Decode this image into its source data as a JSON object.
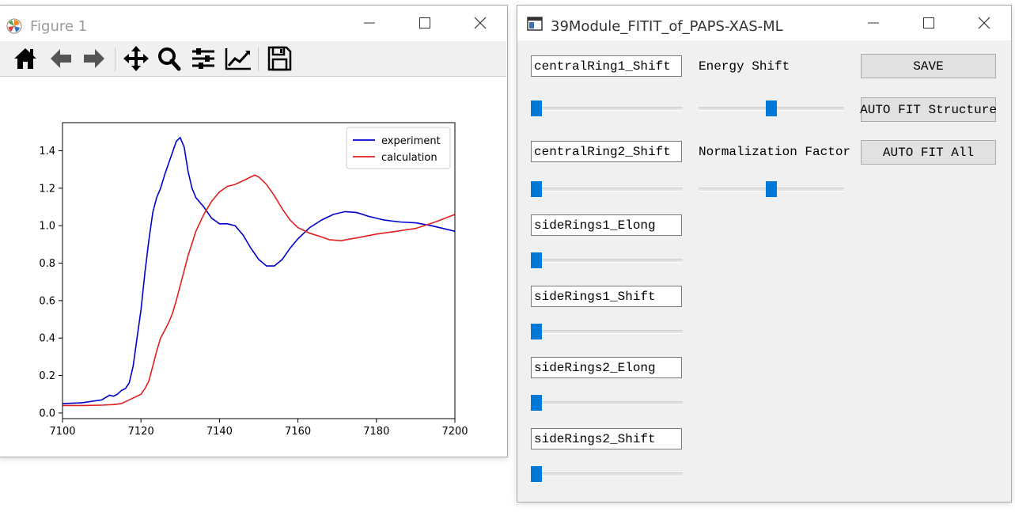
{
  "figure_window": {
    "title": "Figure 1",
    "toolbar": [
      {
        "name": "home-icon"
      },
      {
        "name": "back-icon"
      },
      {
        "name": "forward-icon"
      },
      {
        "name": "pan-icon"
      },
      {
        "name": "zoom-icon"
      },
      {
        "name": "subplots-icon"
      },
      {
        "name": "edit-lines-icon"
      },
      {
        "name": "save-icon"
      }
    ]
  },
  "chart_data": {
    "type": "line",
    "title": "",
    "xlabel": "",
    "ylabel": "",
    "xlim": [
      7100,
      7200
    ],
    "ylim": [
      -0.03,
      1.55
    ],
    "xticks": [
      "7100",
      "7120",
      "7140",
      "7160",
      "7180",
      "7200"
    ],
    "yticks": [
      "0.0",
      "0.2",
      "0.4",
      "0.6",
      "0.8",
      "1.0",
      "1.2",
      "1.4"
    ],
    "legend_position": "top-right",
    "series": [
      {
        "name": "experiment",
        "color": "#0000cc",
        "points": [
          [
            7100,
            0.05
          ],
          [
            7105,
            0.055
          ],
          [
            7110,
            0.07
          ],
          [
            7112,
            0.095
          ],
          [
            7113,
            0.09
          ],
          [
            7114,
            0.1
          ],
          [
            7115,
            0.12
          ],
          [
            7116,
            0.13
          ],
          [
            7117,
            0.16
          ],
          [
            7118,
            0.25
          ],
          [
            7119,
            0.4
          ],
          [
            7120,
            0.55
          ],
          [
            7121,
            0.75
          ],
          [
            7122,
            0.92
          ],
          [
            7123,
            1.07
          ],
          [
            7124,
            1.15
          ],
          [
            7125,
            1.2
          ],
          [
            7126,
            1.27
          ],
          [
            7127,
            1.33
          ],
          [
            7128,
            1.39
          ],
          [
            7129,
            1.45
          ],
          [
            7130,
            1.47
          ],
          [
            7131,
            1.42
          ],
          [
            7132,
            1.29
          ],
          [
            7133,
            1.2
          ],
          [
            7134,
            1.15
          ],
          [
            7136,
            1.1
          ],
          [
            7138,
            1.04
          ],
          [
            7140,
            1.01
          ],
          [
            7142,
            1.01
          ],
          [
            7144,
            1.0
          ],
          [
            7146,
            0.95
          ],
          [
            7148,
            0.88
          ],
          [
            7150,
            0.82
          ],
          [
            7152,
            0.785
          ],
          [
            7154,
            0.785
          ],
          [
            7156,
            0.82
          ],
          [
            7158,
            0.88
          ],
          [
            7160,
            0.93
          ],
          [
            7163,
            0.99
          ],
          [
            7166,
            1.03
          ],
          [
            7169,
            1.06
          ],
          [
            7172,
            1.075
          ],
          [
            7175,
            1.07
          ],
          [
            7178,
            1.05
          ],
          [
            7182,
            1.03
          ],
          [
            7186,
            1.02
          ],
          [
            7190,
            1.015
          ],
          [
            7194,
            1.0
          ],
          [
            7197,
            0.985
          ],
          [
            7200,
            0.97
          ]
        ]
      },
      {
        "name": "calculation",
        "color": "#e02020",
        "points": [
          [
            7100,
            0.04
          ],
          [
            7105,
            0.04
          ],
          [
            7110,
            0.042
          ],
          [
            7113,
            0.045
          ],
          [
            7115,
            0.05
          ],
          [
            7117,
            0.07
          ],
          [
            7119,
            0.09
          ],
          [
            7120,
            0.1
          ],
          [
            7121,
            0.13
          ],
          [
            7122,
            0.17
          ],
          [
            7123,
            0.25
          ],
          [
            7124,
            0.33
          ],
          [
            7125,
            0.4
          ],
          [
            7126,
            0.44
          ],
          [
            7127,
            0.48
          ],
          [
            7128,
            0.53
          ],
          [
            7129,
            0.6
          ],
          [
            7130,
            0.68
          ],
          [
            7132,
            0.84
          ],
          [
            7134,
            0.97
          ],
          [
            7136,
            1.06
          ],
          [
            7138,
            1.13
          ],
          [
            7140,
            1.18
          ],
          [
            7142,
            1.21
          ],
          [
            7144,
            1.22
          ],
          [
            7146,
            1.24
          ],
          [
            7148,
            1.26
          ],
          [
            7149,
            1.27
          ],
          [
            7150,
            1.26
          ],
          [
            7152,
            1.22
          ],
          [
            7154,
            1.16
          ],
          [
            7156,
            1.09
          ],
          [
            7158,
            1.03
          ],
          [
            7160,
            0.99
          ],
          [
            7163,
            0.96
          ],
          [
            7166,
            0.94
          ],
          [
            7168,
            0.925
          ],
          [
            7171,
            0.92
          ],
          [
            7175,
            0.935
          ],
          [
            7180,
            0.955
          ],
          [
            7185,
            0.97
          ],
          [
            7190,
            0.985
          ],
          [
            7195,
            1.02
          ],
          [
            7200,
            1.06
          ]
        ]
      }
    ]
  },
  "module_window": {
    "title": "39Module_FITIT_of_PAPS-XAS-ML",
    "parameters": [
      {
        "label": "centralRing1_Shift",
        "value": 0.0
      },
      {
        "label": "centralRing2_Shift",
        "value": 0.0
      },
      {
        "label": "sideRings1_Elong",
        "value": 0.0
      },
      {
        "label": "sideRings1_Shift",
        "value": 0.0
      },
      {
        "label": "sideRings2_Elong",
        "value": 0.0
      },
      {
        "label": "sideRings2_Shift",
        "value": 0.0
      }
    ],
    "energy_shift": {
      "label": "Energy Shift",
      "value": 0.5
    },
    "normalization": {
      "label": "Normalization Factor",
      "value": 0.5
    },
    "buttons": {
      "save": "SAVE",
      "auto_fit_structure": "AUTO FIT Structure",
      "auto_fit_all": "AUTO FIT All"
    }
  }
}
